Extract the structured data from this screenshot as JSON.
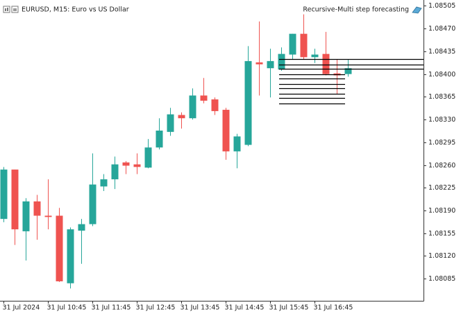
{
  "chart_data": {
    "type": "candlestick",
    "title": "EURUSD, M15:  Euro vs US Dollar",
    "indicator": "Recursive-Multi step forecasting",
    "categories": [
      "31 Jul 2024",
      null,
      null,
      null,
      "31 Jul 10:45",
      null,
      null,
      null,
      "31 Jul 11:45",
      null,
      null,
      null,
      "31 Jul 12:45",
      null,
      null,
      null,
      "31 Jul 13:45",
      null,
      null,
      null,
      "31 Jul 14:45",
      null,
      null,
      null,
      "31 Jul 15:45",
      null,
      null,
      null,
      "31 Jul 16:45",
      null,
      null,
      null
    ],
    "open": [
      1.08177,
      1.08253,
      1.08158,
      1.08204,
      1.08182,
      1.08182,
      1.08078,
      1.08159,
      1.08169,
      1.08227,
      1.08238,
      1.08264,
      1.08261,
      1.08256,
      1.08287,
      1.08311,
      1.08337,
      1.08332,
      1.08367,
      1.08361,
      1.08345,
      1.08281,
      1.08291,
      1.08418,
      1.08409,
      1.08407,
      1.0843,
      1.08462,
      1.08426,
      1.08431,
      1.08401,
      1.084
    ],
    "high": [
      1.08257,
      1.08253,
      1.08209,
      1.08214,
      1.08238,
      1.08194,
      1.08164,
      1.08177,
      1.08278,
      1.08246,
      1.08273,
      1.08266,
      1.08278,
      1.083,
      1.08332,
      1.08348,
      1.08341,
      1.08378,
      1.08394,
      1.08364,
      1.08348,
      1.08308,
      1.08443,
      1.08481,
      1.08439,
      1.08441,
      1.08462,
      1.08492,
      1.08439,
      1.08465,
      1.08423,
      1.08423
    ],
    "low": [
      1.08172,
      1.08137,
      1.08113,
      1.08145,
      1.08161,
      1.0808,
      1.0807,
      1.08108,
      1.08166,
      1.0822,
      1.08223,
      1.08246,
      1.08246,
      1.08255,
      1.08284,
      1.08305,
      1.08316,
      1.0833,
      1.08355,
      1.08337,
      1.08268,
      1.08255,
      1.08289,
      1.08367,
      1.08364,
      1.08405,
      1.08423,
      1.08423,
      1.08417,
      1.08398,
      1.08369,
      1.08396
    ],
    "close": [
      1.08253,
      1.08161,
      1.08204,
      1.08182,
      1.0818,
      1.08081,
      1.08161,
      1.08169,
      1.0823,
      1.08238,
      1.08261,
      1.08259,
      1.08257,
      1.08287,
      1.08313,
      1.08338,
      1.08332,
      1.08367,
      1.08359,
      1.08343,
      1.08281,
      1.08304,
      1.0842,
      1.08415,
      1.0842,
      1.08431,
      1.08462,
      1.08426,
      1.0843,
      1.084,
      1.08398,
      1.08409
    ],
    "up_color": "#26a69a",
    "down_color": "#ef5350",
    "forecast_levels": [
      1.08423,
      1.08415,
      1.08408,
      1.084,
      1.08393,
      1.08385,
      1.08378,
      1.0837,
      1.08363,
      1.08355
    ],
    "forecast_color": "#000000",
    "ylim": [
      1.08051,
      1.08514
    ],
    "yticks": [
      1.08505,
      {
        "value": 1.0847,
        "label": "1.08470"
      },
      1.08435,
      {
        "value": 1.084,
        "label": "1.08400"
      },
      1.08365,
      {
        "value": 1.0833,
        "label": "1.08330"
      },
      1.08295,
      {
        "value": 1.0826,
        "label": "1.08260"
      },
      1.08225,
      {
        "value": 1.0819,
        "label": "1.08190"
      },
      1.08155,
      {
        "value": 1.0812,
        "label": "1.08120"
      },
      1.08085
    ]
  }
}
